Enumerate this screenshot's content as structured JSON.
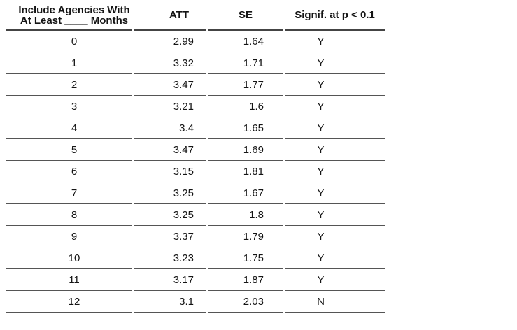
{
  "table": {
    "columns": [
      {
        "line1": "Include Agencies With",
        "line2": "At Least ____ Months"
      },
      {
        "label": "ATT"
      },
      {
        "label": "SE"
      },
      {
        "label": "Signif. at p < 0.1"
      }
    ],
    "rows": [
      {
        "months": "0",
        "att": "2.99",
        "se": "1.64",
        "signif": "Y"
      },
      {
        "months": "1",
        "att": "3.32",
        "se": "1.71",
        "signif": "Y"
      },
      {
        "months": "2",
        "att": "3.47",
        "se": "1.77",
        "signif": "Y"
      },
      {
        "months": "3",
        "att": "3.21",
        "se": "1.6",
        "signif": "Y"
      },
      {
        "months": "4",
        "att": "3.4",
        "se": "1.65",
        "signif": "Y"
      },
      {
        "months": "5",
        "att": "3.47",
        "se": "1.69",
        "signif": "Y"
      },
      {
        "months": "6",
        "att": "3.15",
        "se": "1.81",
        "signif": "Y"
      },
      {
        "months": "7",
        "att": "3.25",
        "se": "1.67",
        "signif": "Y"
      },
      {
        "months": "8",
        "att": "3.25",
        "se": "1.8",
        "signif": "Y"
      },
      {
        "months": "9",
        "att": "3.37",
        "se": "1.79",
        "signif": "Y"
      },
      {
        "months": "10",
        "att": "3.23",
        "se": "1.75",
        "signif": "Y"
      },
      {
        "months": "11",
        "att": "3.17",
        "se": "1.87",
        "signif": "Y"
      },
      {
        "months": "12",
        "att": "3.1",
        "se": "2.03",
        "signif": "N"
      }
    ]
  },
  "colors": {
    "background": "#ffffff",
    "text": "#141414",
    "header_rule": "#444444",
    "row_rule": "#555555"
  }
}
